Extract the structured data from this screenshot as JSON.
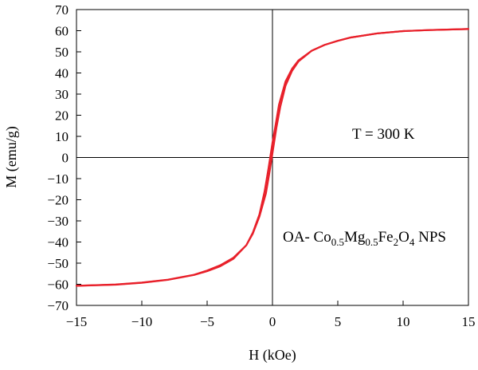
{
  "chart_data": {
    "type": "line",
    "title": "",
    "xlabel": "H (kOe)",
    "ylabel": "M (emu/g)",
    "xlim": [
      -15,
      15
    ],
    "ylim": [
      -70,
      70
    ],
    "x_ticks": [
      -15,
      -10,
      -5,
      0,
      5,
      10,
      15
    ],
    "y_ticks": [
      -70,
      -60,
      -50,
      -40,
      -30,
      -20,
      -10,
      0,
      10,
      20,
      30,
      40,
      50,
      60,
      70
    ],
    "x_tick_labels": [
      "−15",
      "−10",
      "−5",
      "0",
      "5",
      "10",
      "15"
    ],
    "y_tick_labels": [
      "−70",
      "−60",
      "−50",
      "−40",
      "−30",
      "−20",
      "−10",
      "0",
      "10",
      "20",
      "30",
      "40",
      "50",
      "60",
      "70"
    ],
    "grid": false,
    "series": [
      {
        "color": "#e8202a",
        "x": [
          -15,
          -12,
          -10,
          -8,
          -6,
          -5,
          -4,
          -3,
          -2,
          -1.5,
          -1,
          -0.5,
          -0.2,
          0,
          0.3,
          0.6,
          1,
          1.5,
          2,
          3,
          4,
          5,
          6,
          8,
          10,
          12,
          15
        ],
        "y": [
          -60.7,
          -60.1,
          -59.2,
          -57.8,
          -55.5,
          -53.5,
          -51,
          -47.5,
          -41.5,
          -36,
          -28,
          -17,
          -6,
          2,
          14,
          24,
          34,
          41,
          45.5,
          50.5,
          53.3,
          55.2,
          56.8,
          58.7,
          59.8,
          60.3,
          60.8
        ]
      },
      {
        "color": "#e8202a",
        "x": [
          15,
          12,
          10,
          8,
          6,
          5,
          4,
          3,
          2,
          1.5,
          1,
          0.5,
          0.2,
          0,
          -0.3,
          -0.6,
          -1,
          -1.5,
          -2,
          -3,
          -4,
          -5,
          -6,
          -8,
          -10,
          -12,
          -15
        ],
        "y": [
          60.8,
          60.3,
          59.8,
          58.7,
          56.8,
          55.2,
          53.3,
          50.5,
          46,
          42,
          36,
          25,
          14,
          7,
          -5,
          -16,
          -27,
          -35.5,
          -41.5,
          -48,
          -51.5,
          -53.8,
          -55.6,
          -57.9,
          -59.3,
          -60.2,
          -60.7
        ]
      }
    ],
    "annotations": {
      "temperature": "T = 300 K",
      "sample_prefix": "OA- Co",
      "sub_co": "0.5",
      "element_mg": "Mg",
      "sub_mg": "0.5",
      "element_fe": "Fe",
      "sub_fe": "2",
      "element_o": "O",
      "sub_o": "4",
      "sample_suffix": " NPS"
    }
  }
}
